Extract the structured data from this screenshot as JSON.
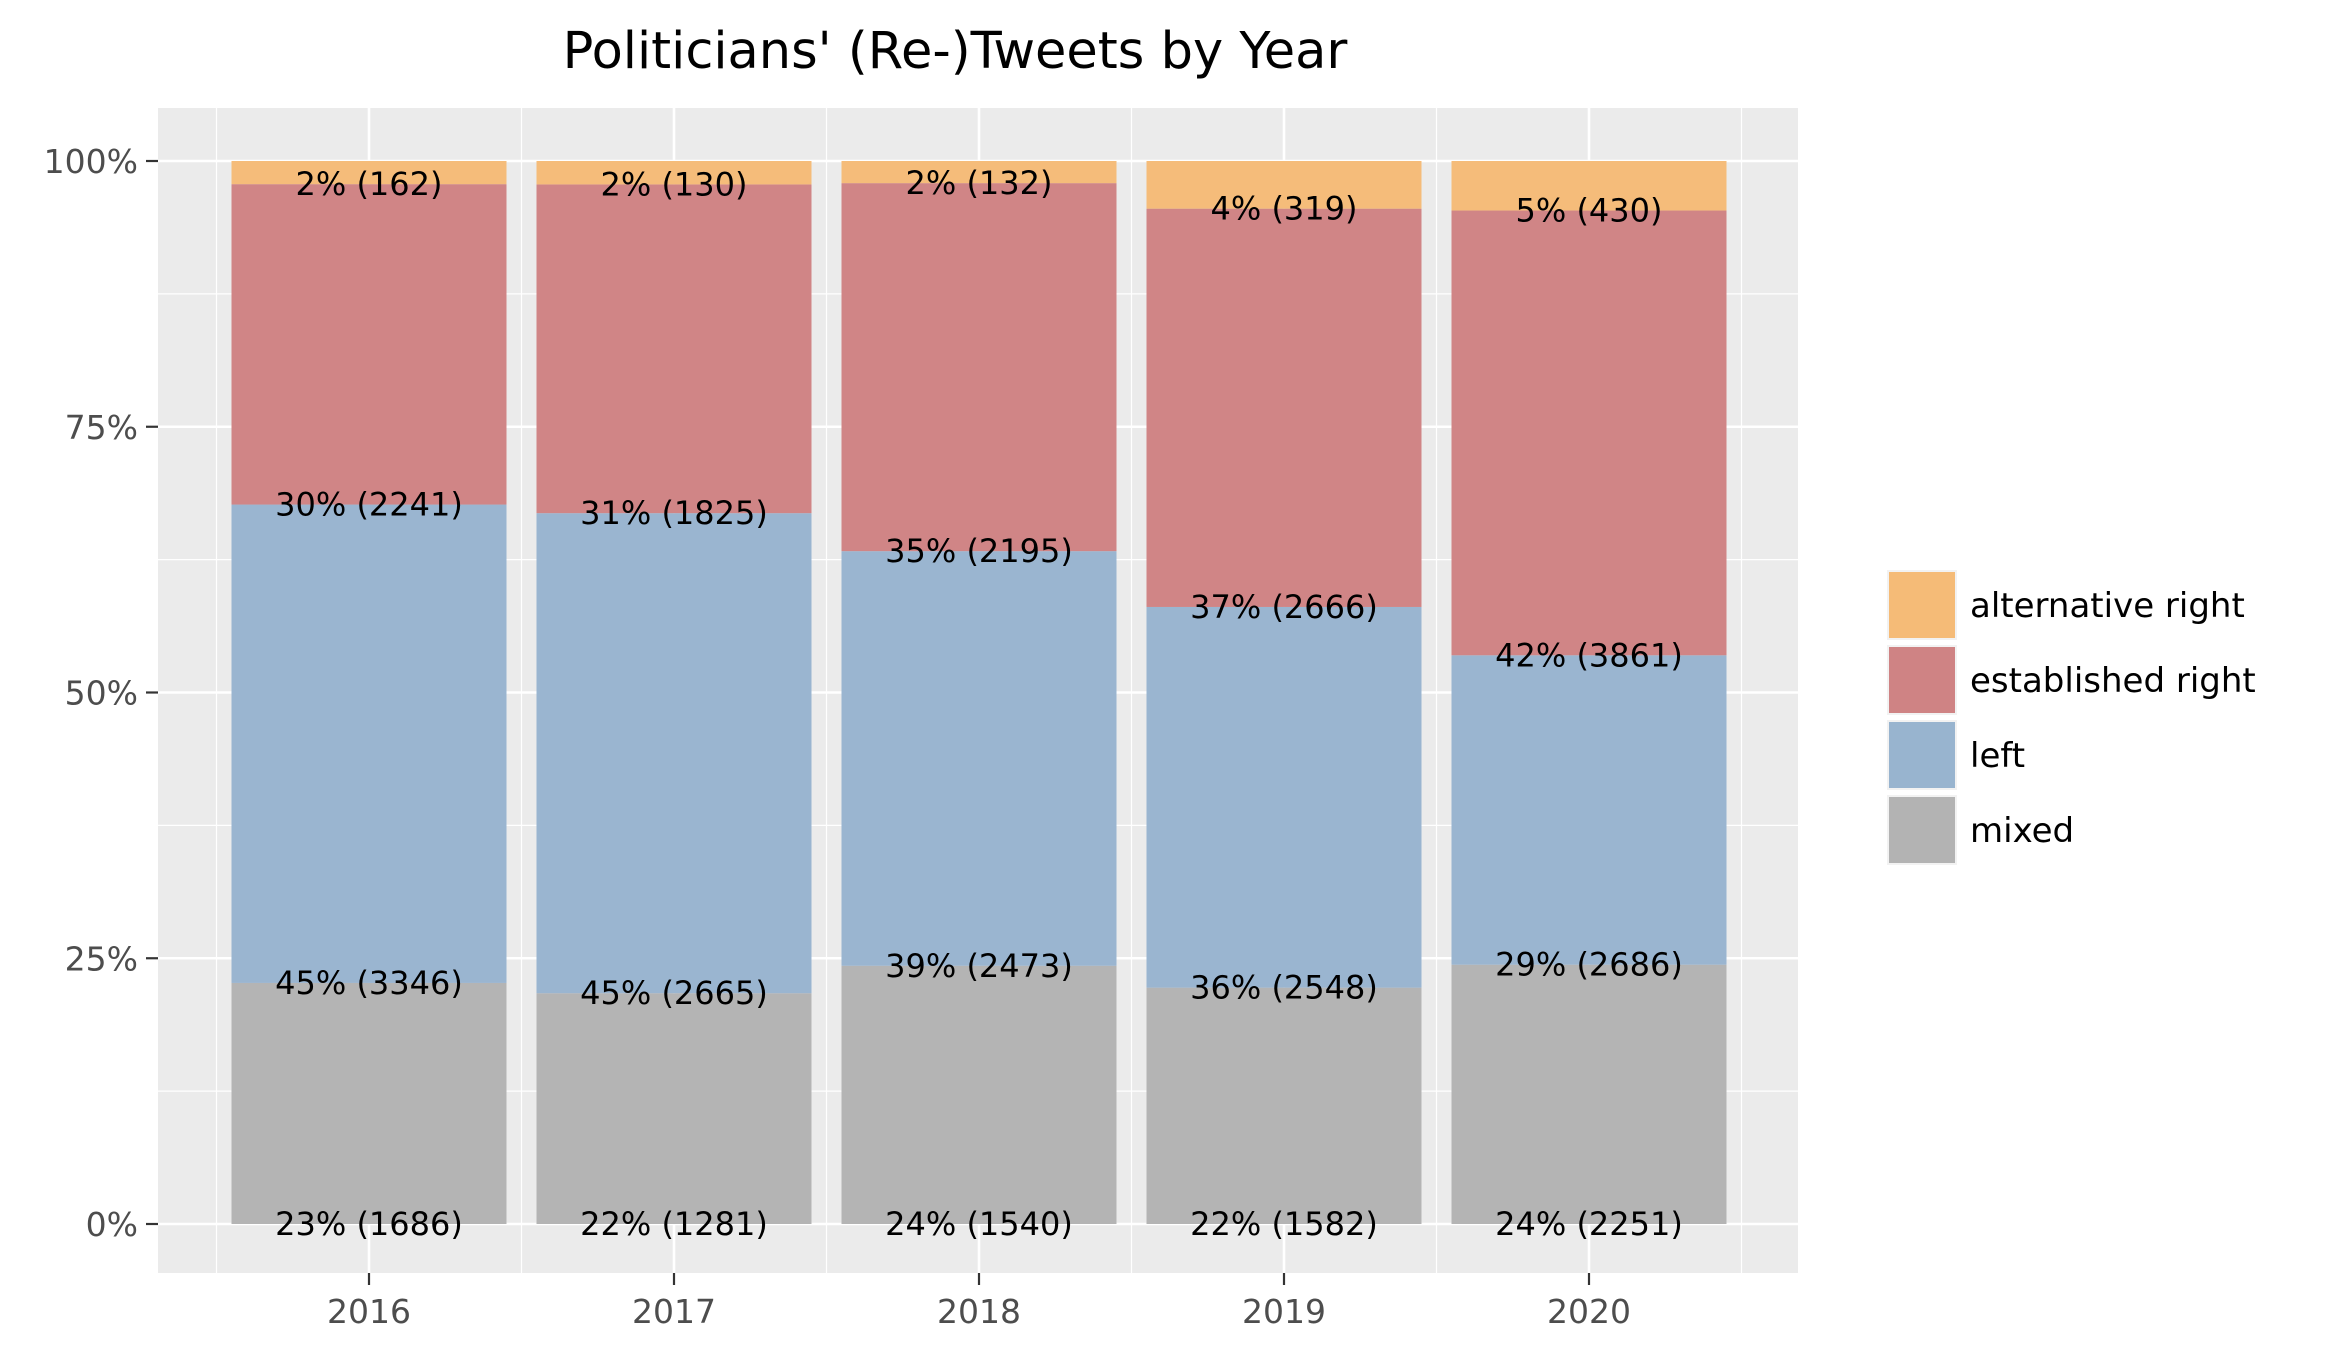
{
  "chart_data": {
    "type": "bar",
    "stacked": true,
    "normalized": true,
    "title": "Politicians' (Re-)Tweets by Year",
    "xlabel": "",
    "ylabel": "",
    "ylim": [
      0,
      1
    ],
    "yticks": [
      {
        "value": 0,
        "label": "0%"
      },
      {
        "value": 0.25,
        "label": "25%"
      },
      {
        "value": 0.5,
        "label": "50%"
      },
      {
        "value": 0.75,
        "label": "75%"
      },
      {
        "value": 1,
        "label": "100%"
      }
    ],
    "categories": [
      "2016",
      "2017",
      "2018",
      "2019",
      "2020"
    ],
    "series": [
      {
        "name": "mixed",
        "color": "#b3b3b3",
        "counts": [
          1686,
          1281,
          1540,
          1582,
          2251
        ],
        "labels": [
          "23% (1686)",
          "22% (1281)",
          "24% (1540)",
          "22% (1582)",
          "24% (2251)"
        ]
      },
      {
        "name": "left",
        "color": "#98b4cf",
        "counts": [
          3346,
          2665,
          2473,
          2548,
          2686
        ],
        "labels": [
          "45% (3346)",
          "45% (2665)",
          "39% (2473)",
          "36% (2548)",
          "29% (2686)"
        ]
      },
      {
        "name": "established right",
        "color": "#cf8384",
        "counts": [
          2241,
          1825,
          2195,
          2666,
          3861
        ],
        "labels": [
          "30% (2241)",
          "31% (1825)",
          "35% (2195)",
          "37% (2666)",
          "42% (3861)"
        ]
      },
      {
        "name": "alternative right",
        "color": "#f5bb77",
        "counts": [
          162,
          130,
          132,
          319,
          430
        ],
        "labels": [
          "2% (162)",
          "2% (130)",
          "2% (132)",
          "4% (319)",
          "5% (430)"
        ]
      }
    ],
    "legend": {
      "placement": "right",
      "order": [
        "alternative right",
        "established right",
        "left",
        "mixed"
      ]
    },
    "grid": true,
    "panel_background": "#ebebeb"
  }
}
